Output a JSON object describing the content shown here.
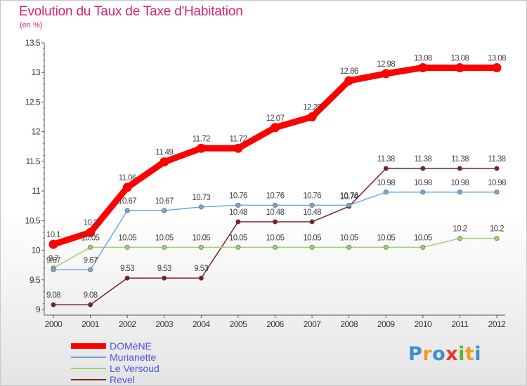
{
  "header": {
    "title": "Evolution du Taux de Taxe d'Habitation",
    "subtitle": "(en %)"
  },
  "logo": {
    "text": "Proxiti",
    "letter_colors": [
      "#3a8fd0",
      "#f29a1f",
      "#3a8fd0",
      "#e8362a",
      "#5fb233",
      "#f29a1f",
      "#3a8fd0"
    ]
  },
  "chart_data": {
    "type": "line",
    "x": [
      "2000",
      "2001",
      "2002",
      "2003",
      "2004",
      "2005",
      "2006",
      "2007",
      "2008",
      "2009",
      "2010",
      "2011",
      "2012"
    ],
    "ylim": [
      9,
      13.5
    ],
    "y_ticks": [
      "9",
      "9.5",
      "10",
      "10.5",
      "11",
      "11.5",
      "12",
      "12.5",
      "13",
      "13.5"
    ],
    "grid": false,
    "legend_position": "bottom-left",
    "series": [
      {
        "name": "DOMèNE",
        "color": "#ff0000",
        "values": [
          10.1,
          10.3,
          11.06,
          11.49,
          11.72,
          11.72,
          12.07,
          12.25,
          12.86,
          12.98,
          13.08,
          13.08,
          13.08
        ],
        "labels": [
          "10.1",
          "10.3",
          "11.06",
          "11.49",
          "11.72",
          "11.72",
          "12.07",
          "12.25",
          "12.86",
          "12.98",
          "13.08",
          "13.08",
          "13.08"
        ]
      },
      {
        "name": "Murianette",
        "color": "#6fa8dc",
        "values": [
          9.67,
          9.67,
          10.67,
          10.67,
          10.73,
          10.76,
          10.76,
          10.76,
          10.76,
          10.98,
          10.98,
          10.98,
          10.98
        ],
        "labels": [
          "9.67",
          "9.67",
          "10.67",
          "10.67",
          "10.73",
          "10.76",
          "10.76",
          "10.76",
          "10.76",
          "10.98",
          "10.98",
          "10.98",
          "10.98"
        ]
      },
      {
        "name": "Le Versoud",
        "color": "#9ed36a",
        "values": [
          9.7,
          10.05,
          10.05,
          10.05,
          10.05,
          10.05,
          10.05,
          10.05,
          10.05,
          10.05,
          10.05,
          10.2,
          10.2
        ],
        "labels": [
          "9.7",
          "10.05",
          "10.05",
          "10.05",
          "10.05",
          "10.05",
          "10.05",
          "10.05",
          "10.05",
          "10.05",
          "10.05",
          "10.2",
          "10.2"
        ]
      },
      {
        "name": "Revel",
        "color": "#7b2020",
        "values": [
          9.08,
          9.08,
          9.53,
          9.53,
          9.53,
          10.48,
          10.48,
          10.48,
          10.74,
          11.38,
          11.38,
          11.38,
          11.38
        ],
        "labels": [
          "9.08",
          "9.08",
          "9.53",
          "9.53",
          "9.53",
          "10.48",
          "10.48",
          "10.48",
          "10.74",
          "11.38",
          "11.38",
          "11.38",
          "11.38"
        ]
      }
    ]
  }
}
